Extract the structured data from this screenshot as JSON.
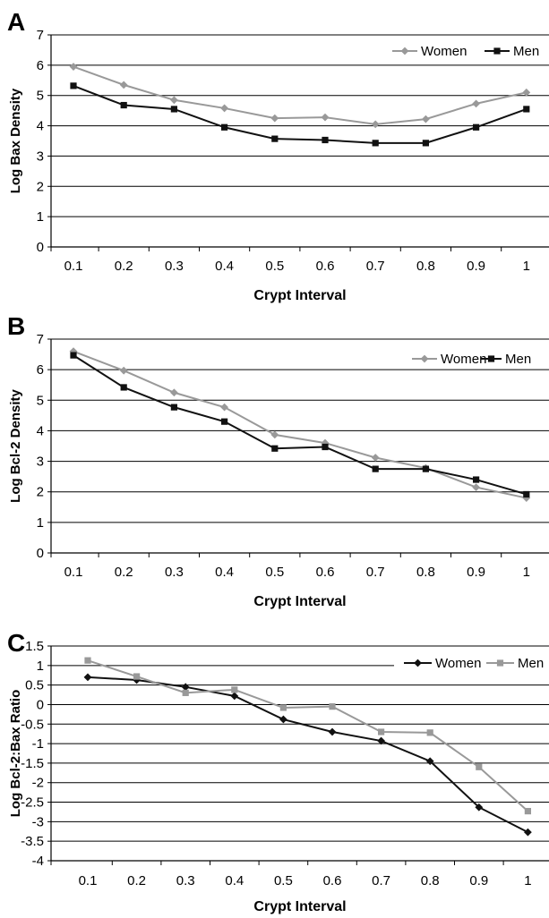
{
  "chart_data": [
    {
      "panel_letter": "A",
      "type": "line",
      "x": [
        0.1,
        0.2,
        0.3,
        0.4,
        0.5,
        0.6,
        0.7,
        0.8,
        0.9,
        1
      ],
      "x_tick_labels": [
        "0.1",
        "0.2",
        "0.3",
        "0.4",
        "0.5",
        "0.6",
        "0.7",
        "0.8",
        "0.9",
        "1"
      ],
      "xlabel": "Crypt Interval",
      "ylabel": "Log Bax Density",
      "ylim": [
        0,
        7
      ],
      "y_ticks": [
        0,
        1,
        2,
        3,
        4,
        5,
        6,
        7
      ],
      "y_tick_labels": [
        "0",
        "1",
        "2",
        "3",
        "4",
        "5",
        "6",
        "7"
      ],
      "grid": true,
      "legend_position": "top-right",
      "series": [
        {
          "name": "Women",
          "marker": "diamond",
          "color": "#999999",
          "values": [
            5.95,
            5.35,
            4.85,
            4.58,
            4.25,
            4.28,
            4.05,
            4.22,
            4.73,
            5.1
          ]
        },
        {
          "name": "Men",
          "marker": "square",
          "color": "#111111",
          "values": [
            5.32,
            4.68,
            4.55,
            3.95,
            3.57,
            3.53,
            3.43,
            3.43,
            3.95,
            4.55
          ]
        }
      ]
    },
    {
      "panel_letter": "B",
      "type": "line",
      "x": [
        0.1,
        0.2,
        0.3,
        0.4,
        0.5,
        0.6,
        0.7,
        0.8,
        0.9,
        1
      ],
      "x_tick_labels": [
        "0.1",
        "0.2",
        "0.3",
        "0.4",
        "0.5",
        "0.6",
        "0.7",
        "0.8",
        "0.9",
        "1"
      ],
      "xlabel": "Crypt Interval",
      "ylabel": "Log Bcl-2 Density",
      "ylim": [
        0,
        7
      ],
      "y_ticks": [
        0,
        1,
        2,
        3,
        4,
        5,
        6,
        7
      ],
      "y_tick_labels": [
        "0",
        "1",
        "2",
        "3",
        "4",
        "5",
        "6",
        "7"
      ],
      "grid": true,
      "legend_position": "top-right",
      "series": [
        {
          "name": "Women",
          "marker": "diamond",
          "color": "#999999",
          "values": [
            6.6,
            5.97,
            5.25,
            4.77,
            3.87,
            3.6,
            3.12,
            2.78,
            2.15,
            1.8
          ]
        },
        {
          "name": "Men",
          "marker": "square",
          "color": "#111111",
          "values": [
            6.47,
            5.42,
            4.77,
            4.3,
            3.42,
            3.47,
            2.75,
            2.75,
            2.4,
            1.92
          ]
        }
      ]
    },
    {
      "panel_letter": "C",
      "type": "line",
      "x": [
        0.1,
        0.2,
        0.3,
        0.4,
        0.5,
        0.6,
        0.7,
        0.8,
        0.9,
        1
      ],
      "x_tick_labels": [
        "0.1",
        "0.2",
        "0.3",
        "0.4",
        "0.5",
        "0.6",
        "0.7",
        "0.8",
        "0.9",
        "1"
      ],
      "xlabel": "Crypt Interval",
      "ylabel": "Log Bcl-2:Bax Ratio",
      "ylim": [
        -4,
        1.5
      ],
      "y_ticks": [
        -4,
        -3.5,
        -3,
        -2.5,
        -2,
        -1.5,
        -1,
        -0.5,
        0,
        0.5,
        1,
        1.5
      ],
      "y_tick_labels": [
        "-4",
        "-3.5",
        "-3",
        "-2.5",
        "-2",
        "-1.5",
        "-1",
        "-0.5",
        "0",
        "0.5",
        "1",
        "1.5"
      ],
      "grid": true,
      "legend_position": "top-right",
      "series": [
        {
          "name": "Women",
          "marker": "diamond",
          "color": "#111111",
          "values": [
            0.7,
            0.63,
            0.45,
            0.22,
            -0.38,
            -0.7,
            -0.93,
            -1.45,
            -2.63,
            -3.27
          ]
        },
        {
          "name": "Men",
          "marker": "square",
          "color": "#999999",
          "values": [
            1.13,
            0.72,
            0.3,
            0.38,
            -0.08,
            -0.05,
            -0.7,
            -0.72,
            -1.6,
            -2.73
          ]
        }
      ]
    }
  ]
}
